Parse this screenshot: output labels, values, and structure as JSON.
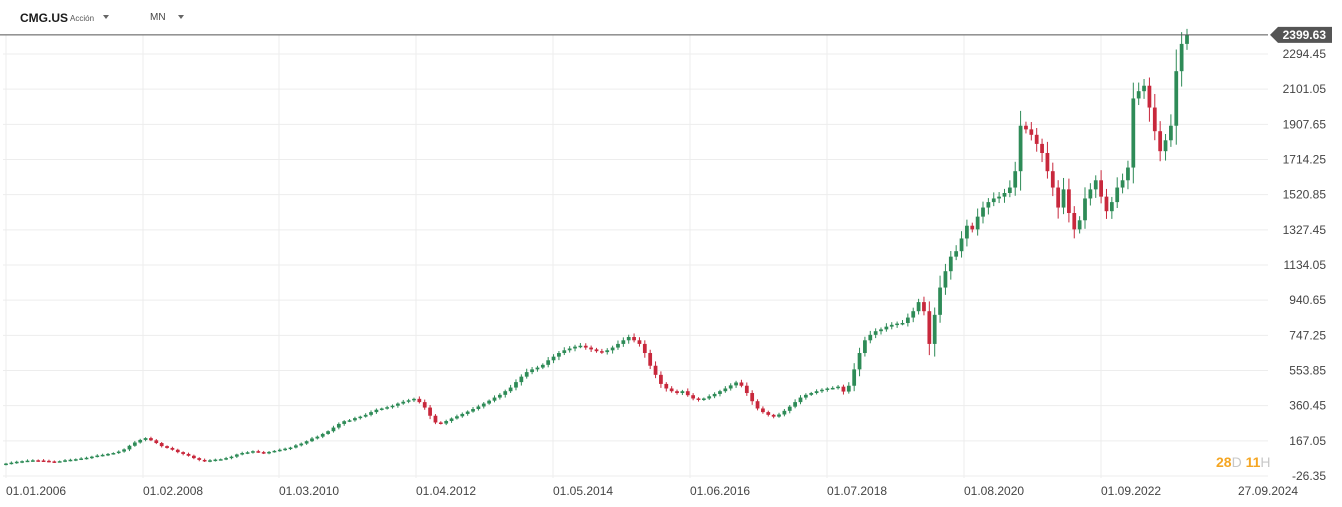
{
  "header": {
    "symbol": "CMG.US",
    "instrument_type": "Acción",
    "timeframe": "MN"
  },
  "countdown": {
    "d_value": "28",
    "d_unit": "D",
    "h_value": "11",
    "h_unit": "H"
  },
  "colors": {
    "up": "#2e8b57",
    "down": "#c8283c",
    "grid": "#ededed",
    "price_line": "#555555",
    "price_tag": "#555555"
  },
  "chart_data": {
    "type": "candlestick",
    "interval": "monthly",
    "current_price": 2399.63,
    "current_price_label": "2399.63",
    "y_ticks": [
      "2294.45",
      "2101.05",
      "1907.65",
      "1714.25",
      "1520.85",
      "1327.45",
      "1134.05",
      "940.65",
      "747.25",
      "553.85",
      "360.45",
      "167.05",
      "-26.35"
    ],
    "ylim": [
      -26.35,
      2448
    ],
    "x_ticks": [
      "01.01.2006",
      "01.02.2008",
      "01.03.2010",
      "01.04.2012",
      "01.05.2014",
      "01.06.2016",
      "01.07.2018",
      "01.08.2020",
      "01.09.2022",
      "27.09.2024"
    ],
    "closes": [
      42,
      47,
      52,
      55,
      58,
      60,
      59,
      57,
      54,
      52,
      55,
      60,
      63,
      66,
      70,
      74,
      80,
      86,
      90,
      95,
      100,
      108,
      120,
      140,
      158,
      172,
      182,
      170,
      155,
      138,
      128,
      118,
      105,
      95,
      85,
      72,
      62,
      55,
      60,
      64,
      66,
      72,
      80,
      92,
      100,
      104,
      110,
      105,
      100,
      106,
      112,
      118,
      124,
      130,
      142,
      152,
      165,
      180,
      190,
      205,
      220,
      240,
      260,
      275,
      280,
      292,
      300,
      310,
      325,
      338,
      345,
      352,
      360,
      372,
      382,
      390,
      398,
      380,
      350,
      305,
      268,
      262,
      276,
      290,
      302,
      315,
      328,
      342,
      356,
      372,
      388,
      405,
      420,
      440,
      460,
      490,
      520,
      545,
      560,
      570,
      585,
      610,
      630,
      650,
      665,
      675,
      685,
      690,
      680,
      670,
      660,
      655,
      665,
      680,
      700,
      720,
      738,
      720,
      700,
      650,
      580,
      530,
      480,
      455,
      440,
      430,
      440,
      418,
      400,
      392,
      400,
      412,
      425,
      440,
      455,
      472,
      488,
      470,
      430,
      385,
      345,
      325,
      310,
      300,
      312,
      332,
      355,
      380,
      405,
      420,
      430,
      440,
      448,
      455,
      458,
      465,
      438,
      470,
      560,
      650,
      720,
      750,
      770,
      780,
      795,
      805,
      812,
      815,
      845,
      880,
      930,
      880,
      700,
      860,
      1010,
      1100,
      1180,
      1210,
      1280,
      1350,
      1330,
      1400,
      1450,
      1480,
      1500,
      1510,
      1530,
      1560,
      1650,
      1900,
      1880,
      1850,
      1800,
      1750,
      1650,
      1560,
      1450,
      1550,
      1420,
      1330,
      1380,
      1500,
      1550,
      1600,
      1510,
      1430,
      1480,
      1560,
      1600,
      1670,
      2050,
      2090,
      2120,
      2000,
      1870,
      1760,
      1820,
      1900,
      2200,
      2350,
      2399.63
    ]
  }
}
